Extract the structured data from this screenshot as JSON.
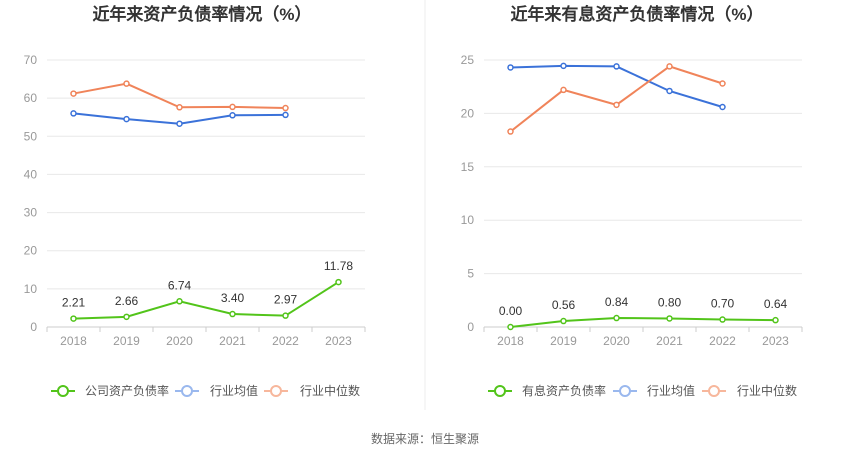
{
  "source": "数据来源：恒生聚源",
  "chart_data": [
    {
      "type": "line",
      "title": "近年来资产负债率情况（%）",
      "categories": [
        "2018",
        "2019",
        "2020",
        "2021",
        "2022",
        "2023"
      ],
      "ylim": [
        0,
        70
      ],
      "yticks": [
        0,
        10,
        20,
        30,
        40,
        50,
        60,
        70
      ],
      "grid": true,
      "legend": "bottom",
      "series": [
        {
          "name": "公司资产负债率",
          "color": "#52c41a",
          "values": [
            2.21,
            2.66,
            6.74,
            3.4,
            2.97,
            11.78
          ],
          "labels": [
            "2.21",
            "2.66",
            "6.74",
            "3.40",
            "2.97",
            "11.78"
          ]
        },
        {
          "name": "行业均值",
          "color": "#3b72d9",
          "values": [
            56.0,
            54.5,
            53.3,
            55.5,
            55.6,
            null
          ]
        },
        {
          "name": "行业中位数",
          "color": "#f0845a",
          "values": [
            61.2,
            63.8,
            57.6,
            57.7,
            57.4,
            null
          ]
        }
      ]
    },
    {
      "type": "line",
      "title": "近年来有息资产负债率情况（%）",
      "categories": [
        "2018",
        "2019",
        "2020",
        "2021",
        "2022",
        "2023"
      ],
      "ylim": [
        0,
        25
      ],
      "yticks": [
        0,
        5,
        10,
        15,
        20,
        25
      ],
      "grid": true,
      "legend": "bottom",
      "series": [
        {
          "name": "有息资产负债率",
          "color": "#52c41a",
          "values": [
            0.0,
            0.56,
            0.84,
            0.8,
            0.7,
            0.64
          ],
          "labels": [
            "0.00",
            "0.56",
            "0.84",
            "0.80",
            "0.70",
            "0.64"
          ]
        },
        {
          "name": "行业均值",
          "color": "#3b72d9",
          "values": [
            24.3,
            24.45,
            24.4,
            22.1,
            20.6,
            null
          ]
        },
        {
          "name": "行业中位数",
          "color": "#f0845a",
          "values": [
            18.3,
            22.2,
            20.8,
            24.4,
            22.8,
            null
          ]
        }
      ]
    }
  ]
}
